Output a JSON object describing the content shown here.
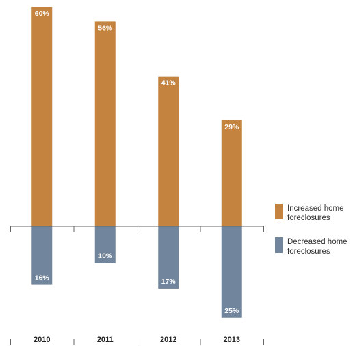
{
  "chart_data": {
    "type": "bar",
    "categories": [
      "2010",
      "2011",
      "2012",
      "2013"
    ],
    "series": [
      {
        "name": "Increased home foreclosures",
        "values": [
          60,
          56,
          41,
          29
        ],
        "color": "#C4843F",
        "direction": "up"
      },
      {
        "name": "Decreased home foreclosures",
        "values": [
          16,
          10,
          17,
          25
        ],
        "color": "#71859C",
        "direction": "down"
      }
    ],
    "data_labels": {
      "increased": [
        "60%",
        "56%",
        "41%",
        "29%"
      ],
      "decreased": [
        "16%",
        "10%",
        "17%",
        "25%"
      ]
    },
    "ylim": [
      -25,
      60
    ],
    "grid": false,
    "legend_position": "right",
    "axis_color": "#666666",
    "label_color": "#ffffff"
  },
  "legend": {
    "items": [
      {
        "label": "Increased home foreclosures",
        "color": "#C4843F"
      },
      {
        "label": "Decreased home foreclosures",
        "color": "#71859C"
      }
    ]
  }
}
